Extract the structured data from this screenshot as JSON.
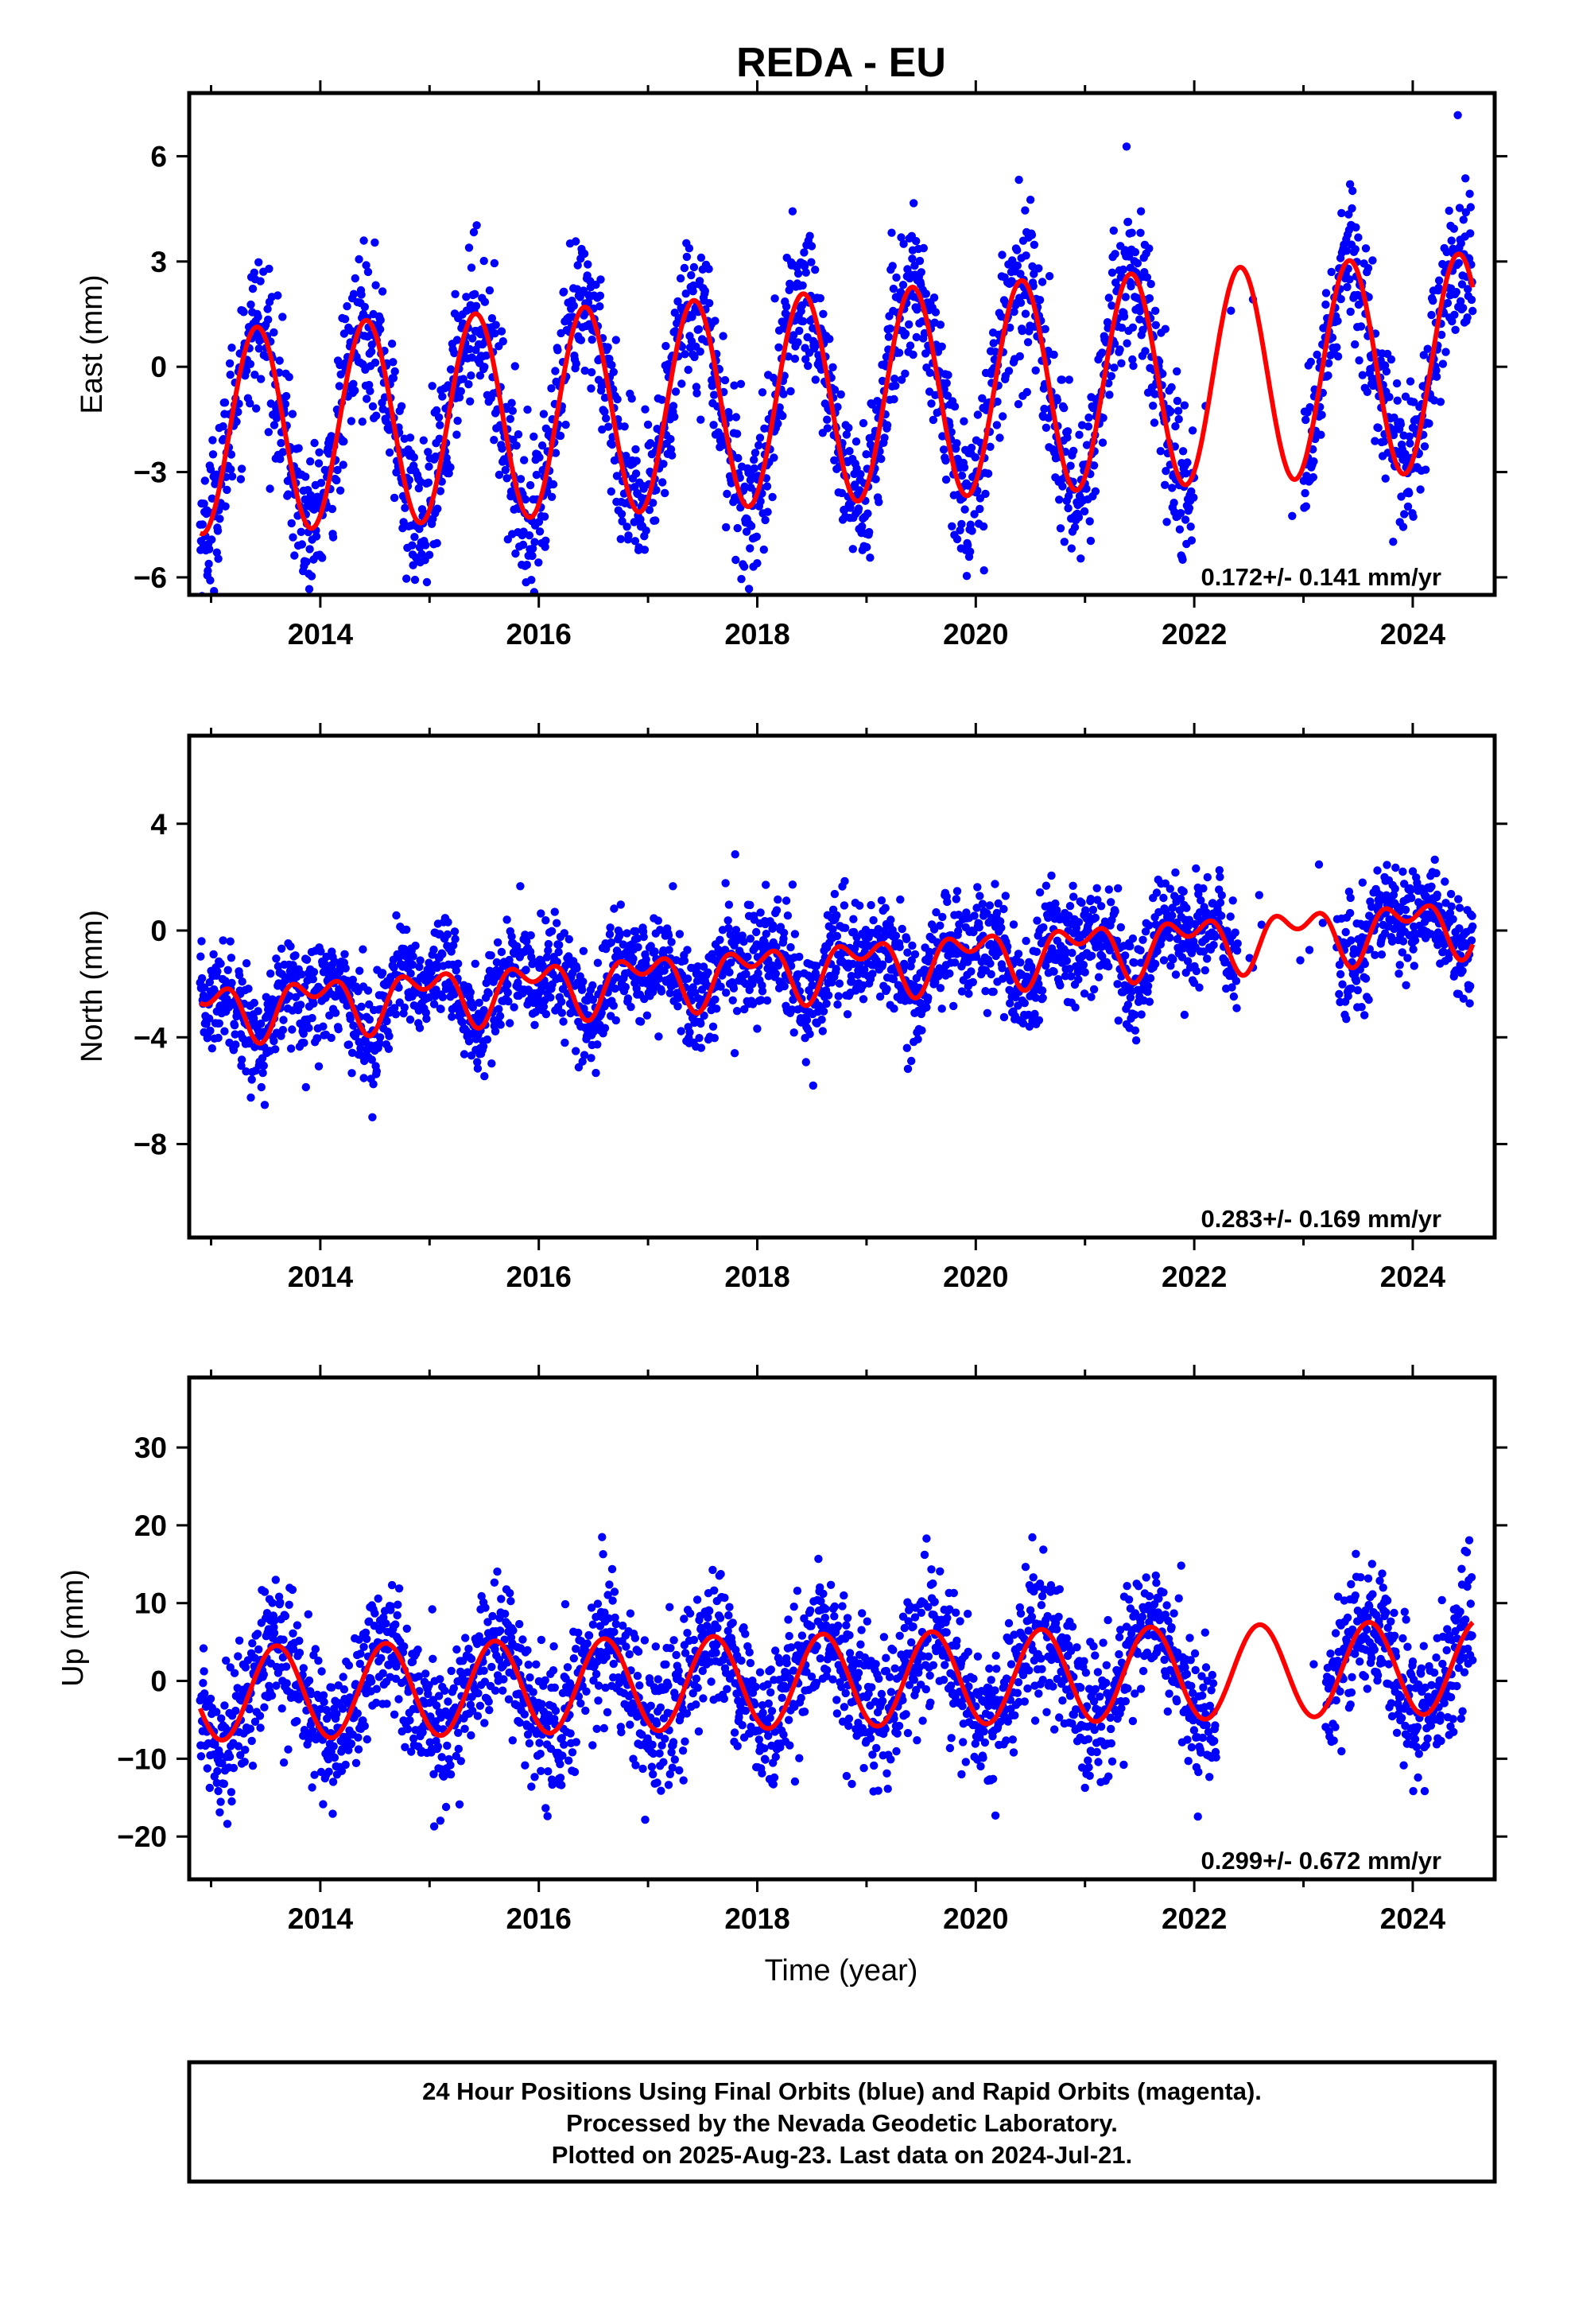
{
  "chart_data": [
    {
      "type": "scatter",
      "title": "REDA - EU",
      "xlabel": "",
      "ylabel": "East (mm)",
      "xlim": [
        2012.8,
        2024.75
      ],
      "ylim": [
        -6.5,
        7.8
      ],
      "yticks": [
        6,
        3,
        0,
        -3,
        -6
      ],
      "xticks": [
        2014,
        2016,
        2018,
        2020,
        2022,
        2024
      ],
      "rate_annotation": "0.172+/- 0.141 mm/yr",
      "model": {
        "offset": -0.9,
        "rate": 0.172,
        "amplitude_start": 2.9,
        "amplitude_end": 3.1,
        "phase_peak_year_fraction": 0.42,
        "annual_period": 1.0
      },
      "observations": {
        "color": "#0000ff",
        "scatter_sd": 1.1,
        "span": [
          2012.9,
          2024.55
        ],
        "gaps": [
          [
            2022.0,
            2023.0
          ]
        ]
      },
      "fit_color": "#ff0000"
    },
    {
      "type": "scatter",
      "title": "",
      "xlabel": "",
      "ylabel": "North (mm)",
      "xlim": [
        2012.8,
        2024.75
      ],
      "ylim": [
        -11.5,
        7.3
      ],
      "yticks": [
        4,
        0,
        -4,
        -8
      ],
      "xticks": [
        2014,
        2016,
        2018,
        2020,
        2022,
        2024
      ],
      "rate_annotation": "0.283+/- 0.169 mm/yr",
      "model": {
        "offset": -1.4,
        "rate": 0.283,
        "amplitude_start": 0.8,
        "amplitude_end": 0.8,
        "phase_peak_year_fraction": 0.95,
        "annual_period": 1.0
      },
      "observations": {
        "color": "#0000ff",
        "scatter_sd": 1.0,
        "span": [
          2012.9,
          2024.55
        ],
        "gaps": [
          [
            2022.4,
            2023.3
          ]
        ]
      },
      "fit_color": "#ff0000"
    },
    {
      "type": "scatter",
      "title": "",
      "xlabel": "Time (year)",
      "ylabel": "Up (mm)",
      "xlim": [
        2012.8,
        2024.75
      ],
      "ylim": [
        -25.5,
        39
      ],
      "yticks": [
        30,
        20,
        10,
        0,
        -10,
        -20
      ],
      "xticks": [
        2014,
        2016,
        2018,
        2020,
        2022,
        2024
      ],
      "rate_annotation": "0.299+/- 0.672 mm/yr",
      "model": {
        "offset": 0.0,
        "rate": 0.299,
        "amplitude_start": 6.0,
        "amplitude_end": 6.0,
        "phase_peak_year_fraction": 0.6,
        "annual_period": 1.0
      },
      "observations": {
        "color": "#0000ff",
        "scatter_sd": 4.5,
        "span": [
          2012.9,
          2024.55
        ],
        "gaps": [
          [
            2022.2,
            2023.2
          ]
        ]
      },
      "fit_color": "#ff0000"
    }
  ],
  "footer": {
    "line1": "24 Hour Positions Using Final Orbits (blue) and Rapid Orbits (magenta).",
    "line2": "Processed by the Nevada Geodetic Laboratory.",
    "line3": "Plotted on 2025-Aug-23. Last data on 2024-Jul-21."
  }
}
